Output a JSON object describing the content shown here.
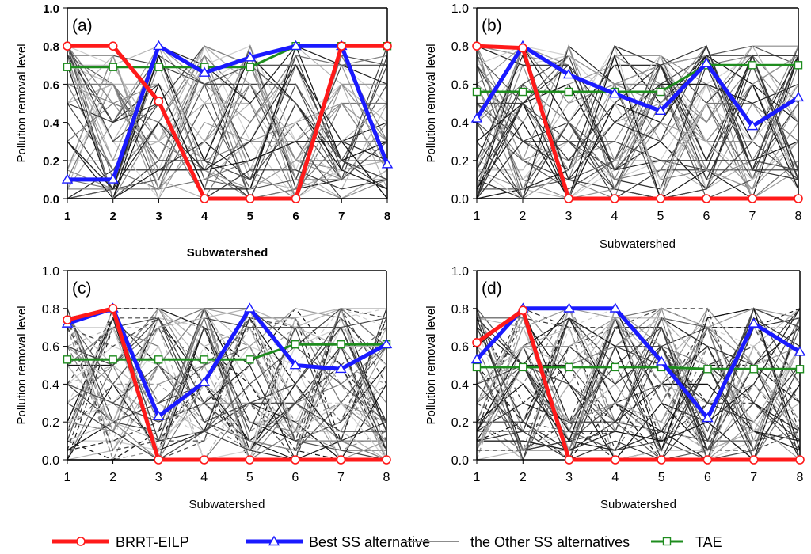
{
  "chart_data": {
    "type": "line",
    "x": [
      1,
      2,
      3,
      4,
      5,
      6,
      7,
      8
    ],
    "xlabel": "Subwatershed",
    "ylabel": "Pollution removal level",
    "ylim": [
      0,
      1.0
    ],
    "yticks": [
      "0.0",
      "0.2",
      "0.4",
      "0.6",
      "0.8",
      "1.0"
    ],
    "xticks": [
      "1",
      "2",
      "3",
      "4",
      "5",
      "6",
      "7",
      "8"
    ],
    "legend": [
      {
        "name": "BRRT-EILP",
        "color": "#ff1a1a",
        "marker": "circle"
      },
      {
        "name": "Best SS alternative",
        "color": "#1a1aff",
        "marker": "triangle"
      },
      {
        "name": "the Other SS alternatives",
        "color": "#8c8c8c",
        "marker": "none"
      },
      {
        "name": "TAE",
        "color": "#1e8c1e",
        "marker": "square"
      }
    ],
    "panels": [
      {
        "label": "(a)",
        "series": [
          {
            "name": "BRRT-EILP",
            "values": [
              0.8,
              0.8,
              0.51,
              0.0,
              0.0,
              0.0,
              0.8,
              0.8
            ]
          },
          {
            "name": "Best SS alternative",
            "values": [
              0.1,
              0.1,
              0.8,
              0.66,
              0.74,
              0.8,
              0.8,
              0.18
            ]
          },
          {
            "name": "TAE",
            "values": [
              0.69,
              0.69,
              0.69,
              0.69,
              0.69,
              0.8,
              0.8,
              0.8
            ]
          }
        ]
      },
      {
        "label": "(b)",
        "series": [
          {
            "name": "BRRT-EILP",
            "values": [
              0.8,
              0.79,
              0.0,
              0.0,
              0.0,
              0.0,
              0.0,
              0.0
            ]
          },
          {
            "name": "Best SS alternative",
            "values": [
              0.42,
              0.8,
              0.65,
              0.55,
              0.46,
              0.71,
              0.38,
              0.53
            ]
          },
          {
            "name": "TAE",
            "values": [
              0.56,
              0.56,
              0.56,
              0.56,
              0.56,
              0.7,
              0.7,
              0.7
            ]
          }
        ]
      },
      {
        "label": "(c)",
        "series": [
          {
            "name": "BRRT-EILP",
            "values": [
              0.74,
              0.8,
              0.0,
              0.0,
              0.0,
              0.0,
              0.0,
              0.0
            ]
          },
          {
            "name": "Best SS alternative",
            "values": [
              0.72,
              0.8,
              0.23,
              0.41,
              0.8,
              0.5,
              0.48,
              0.61
            ]
          },
          {
            "name": "TAE",
            "values": [
              0.53,
              0.53,
              0.53,
              0.53,
              0.53,
              0.61,
              0.61,
              0.61
            ]
          }
        ]
      },
      {
        "label": "(d)",
        "series": [
          {
            "name": "BRRT-EILP",
            "values": [
              0.62,
              0.79,
              0.0,
              0.0,
              0.0,
              0.0,
              0.0,
              0.0
            ]
          },
          {
            "name": "Best SS alternative",
            "values": [
              0.53,
              0.8,
              0.8,
              0.8,
              0.52,
              0.22,
              0.72,
              0.57
            ]
          },
          {
            "name": "TAE",
            "values": [
              0.49,
              0.49,
              0.49,
              0.49,
              0.49,
              0.48,
              0.48,
              0.48
            ]
          }
        ]
      }
    ]
  }
}
